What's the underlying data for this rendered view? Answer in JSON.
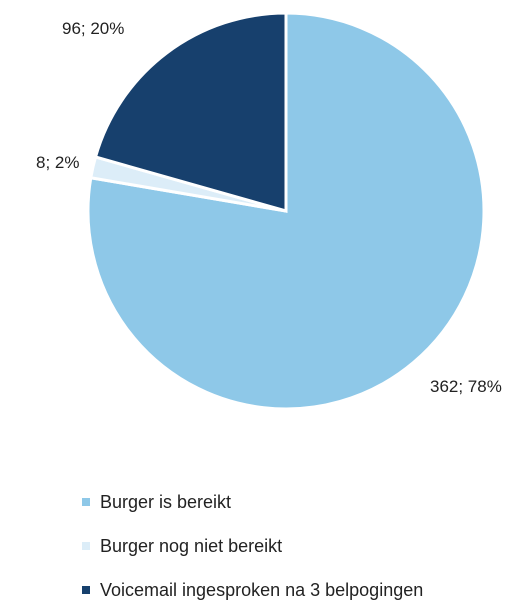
{
  "chart_data": {
    "type": "pie",
    "slices": [
      {
        "name": "Burger is bereikt",
        "value": 362,
        "percent": 78,
        "label": "362; 78%",
        "color": "#8ec8e8"
      },
      {
        "name": "Burger nog niet bereikt",
        "value": 8,
        "percent": 2,
        "label": "8; 2%",
        "color": "#dcedf8"
      },
      {
        "name": "Voicemail ingesproken na 3 belpogingen",
        "value": 96,
        "percent": 20,
        "label": "96; 20%",
        "color": "#17406d"
      }
    ],
    "legend_position": "bottom",
    "start": "top, clockwise"
  }
}
